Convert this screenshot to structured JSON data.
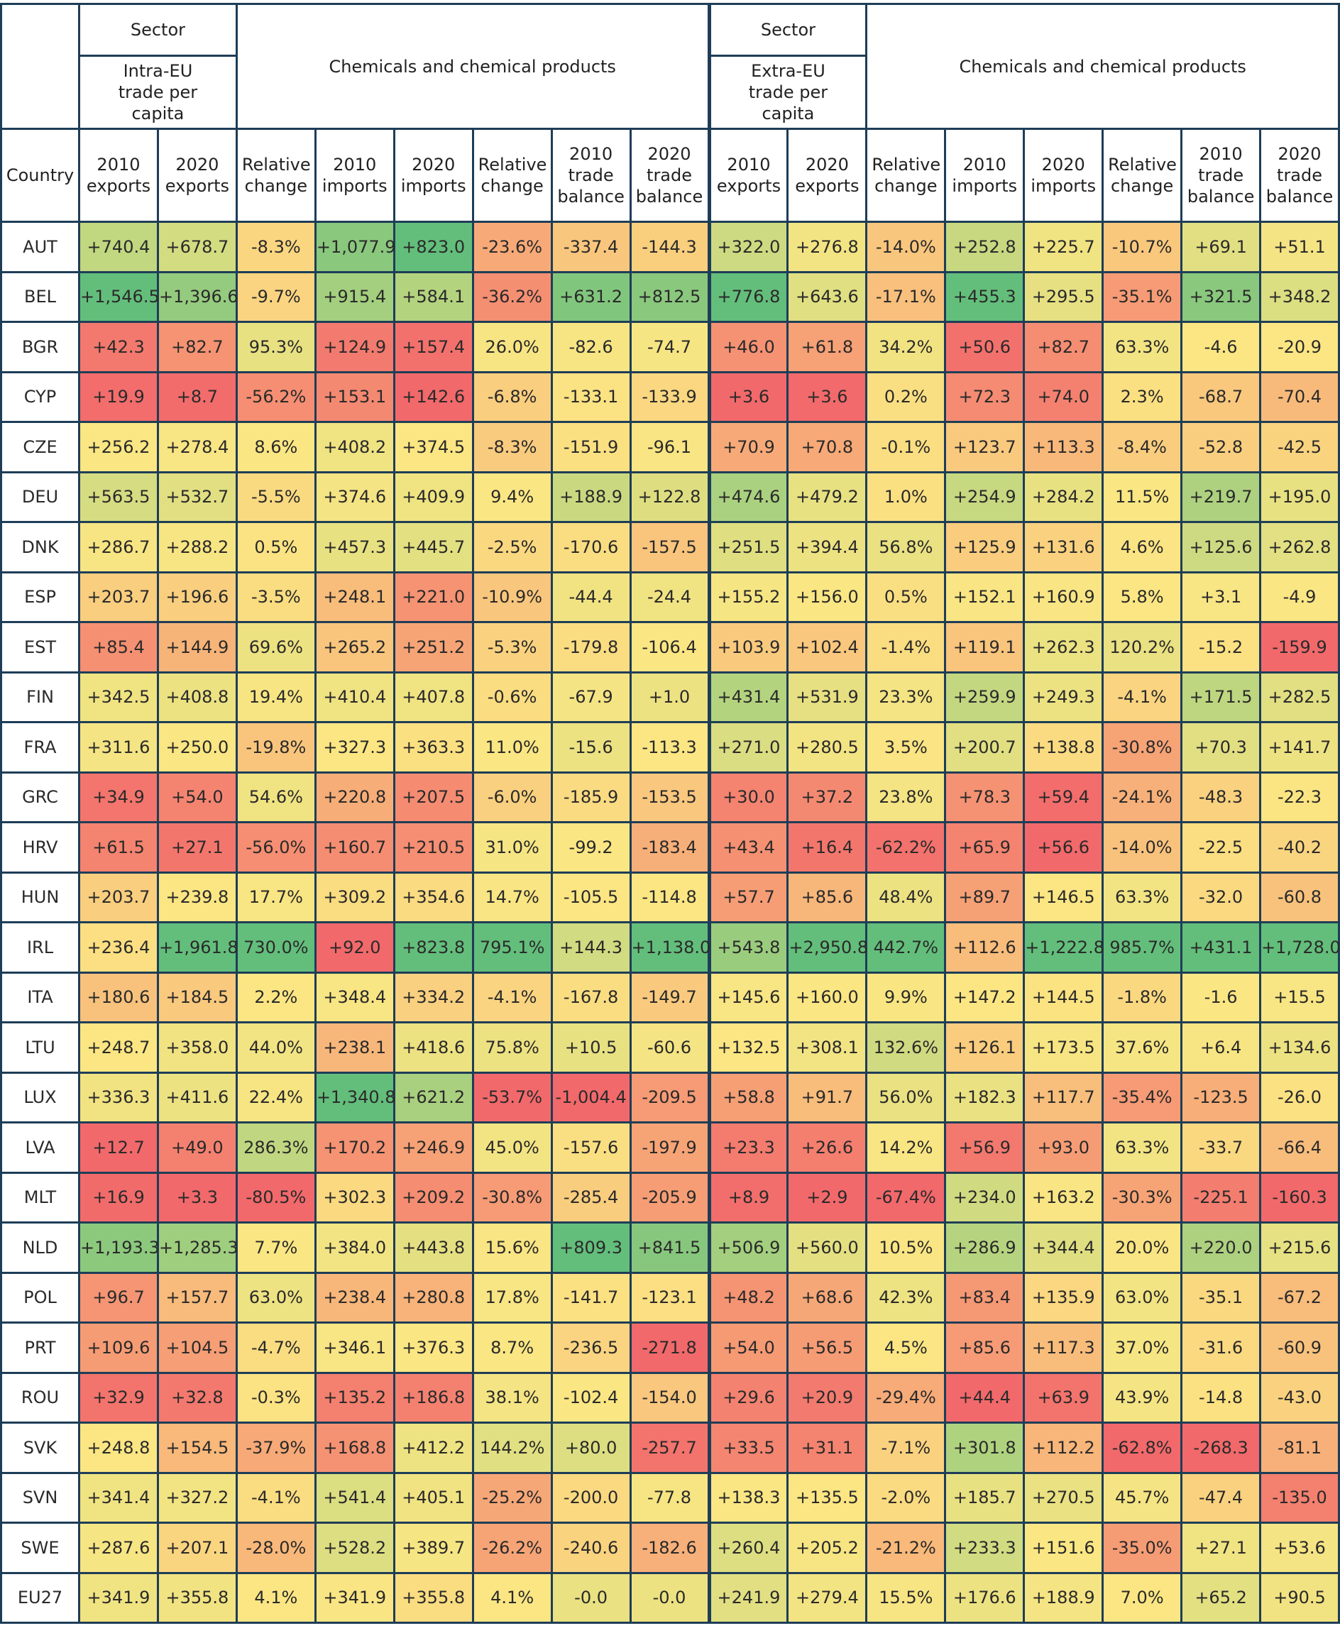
{
  "header": {
    "sector": "Sector",
    "intra_label": "Intra-EU trade per capita",
    "extra_label": "Extra-EU trade per capita",
    "product": "Chemicals and chemical products",
    "country": "Country",
    "columns": [
      "2010 exports",
      "2020 exports",
      "Relative change",
      "2010 imports",
      "2020 imports",
      "Relative change",
      "2010 trade balance",
      "2020 trade balance",
      "2010 exports",
      "2020 exports",
      "Relative change",
      "2010 imports",
      "2020 imports",
      "Relative change",
      "2010 trade balance",
      "2020 trade balance"
    ]
  },
  "colors": {
    "low": "#f2696b",
    "mid": "#fbe683",
    "high": "#63be7b",
    "border": "#1e3d57"
  },
  "rows": [
    {
      "country": "AUT",
      "values": [
        "+740.4",
        "+678.7",
        "-8.3%",
        "+1,077.9",
        "+823.0",
        "-23.6%",
        "-337.4",
        "-144.3",
        "+322.0",
        "+276.8",
        "-14.0%",
        "+252.8",
        "+225.7",
        "-10.7%",
        "+69.1",
        "+51.1"
      ]
    },
    {
      "country": "BEL",
      "values": [
        "+1,546.5",
        "+1,396.6",
        "-9.7%",
        "+915.4",
        "+584.1",
        "-36.2%",
        "+631.2",
        "+812.5",
        "+776.8",
        "+643.6",
        "-17.1%",
        "+455.3",
        "+295.5",
        "-35.1%",
        "+321.5",
        "+348.2"
      ]
    },
    {
      "country": "BGR",
      "values": [
        "+42.3",
        "+82.7",
        "95.3%",
        "+124.9",
        "+157.4",
        "26.0%",
        "-82.6",
        "-74.7",
        "+46.0",
        "+61.8",
        "34.2%",
        "+50.6",
        "+82.7",
        "63.3%",
        "-4.6",
        "-20.9"
      ]
    },
    {
      "country": "CYP",
      "values": [
        "+19.9",
        "+8.7",
        "-56.2%",
        "+153.1",
        "+142.6",
        "-6.8%",
        "-133.1",
        "-133.9",
        "+3.6",
        "+3.6",
        "0.2%",
        "+72.3",
        "+74.0",
        "2.3%",
        "-68.7",
        "-70.4"
      ]
    },
    {
      "country": "CZE",
      "values": [
        "+256.2",
        "+278.4",
        "8.6%",
        "+408.2",
        "+374.5",
        "-8.3%",
        "-151.9",
        "-96.1",
        "+70.9",
        "+70.8",
        "-0.1%",
        "+123.7",
        "+113.3",
        "-8.4%",
        "-52.8",
        "-42.5"
      ]
    },
    {
      "country": "DEU",
      "values": [
        "+563.5",
        "+532.7",
        "-5.5%",
        "+374.6",
        "+409.9",
        "9.4%",
        "+188.9",
        "+122.8",
        "+474.6",
        "+479.2",
        "1.0%",
        "+254.9",
        "+284.2",
        "11.5%",
        "+219.7",
        "+195.0"
      ]
    },
    {
      "country": "DNK",
      "values": [
        "+286.7",
        "+288.2",
        "0.5%",
        "+457.3",
        "+445.7",
        "-2.5%",
        "-170.6",
        "-157.5",
        "+251.5",
        "+394.4",
        "56.8%",
        "+125.9",
        "+131.6",
        "4.6%",
        "+125.6",
        "+262.8"
      ]
    },
    {
      "country": "ESP",
      "values": [
        "+203.7",
        "+196.6",
        "-3.5%",
        "+248.1",
        "+221.0",
        "-10.9%",
        "-44.4",
        "-24.4",
        "+155.2",
        "+156.0",
        "0.5%",
        "+152.1",
        "+160.9",
        "5.8%",
        "+3.1",
        "-4.9"
      ]
    },
    {
      "country": "EST",
      "values": [
        "+85.4",
        "+144.9",
        "69.6%",
        "+265.2",
        "+251.2",
        "-5.3%",
        "-179.8",
        "-106.4",
        "+103.9",
        "+102.4",
        "-1.4%",
        "+119.1",
        "+262.3",
        "120.2%",
        "-15.2",
        "-159.9"
      ]
    },
    {
      "country": "FIN",
      "values": [
        "+342.5",
        "+408.8",
        "19.4%",
        "+410.4",
        "+407.8",
        "-0.6%",
        "-67.9",
        "+1.0",
        "+431.4",
        "+531.9",
        "23.3%",
        "+259.9",
        "+249.3",
        "-4.1%",
        "+171.5",
        "+282.5"
      ]
    },
    {
      "country": "FRA",
      "values": [
        "+311.6",
        "+250.0",
        "-19.8%",
        "+327.3",
        "+363.3",
        "11.0%",
        "-15.6",
        "-113.3",
        "+271.0",
        "+280.5",
        "3.5%",
        "+200.7",
        "+138.8",
        "-30.8%",
        "+70.3",
        "+141.7"
      ]
    },
    {
      "country": "GRC",
      "values": [
        "+34.9",
        "+54.0",
        "54.6%",
        "+220.8",
        "+207.5",
        "-6.0%",
        "-185.9",
        "-153.5",
        "+30.0",
        "+37.2",
        "23.8%",
        "+78.3",
        "+59.4",
        "-24.1%",
        "-48.3",
        "-22.3"
      ]
    },
    {
      "country": "HRV",
      "values": [
        "+61.5",
        "+27.1",
        "-56.0%",
        "+160.7",
        "+210.5",
        "31.0%",
        "-99.2",
        "-183.4",
        "+43.4",
        "+16.4",
        "-62.2%",
        "+65.9",
        "+56.6",
        "-14.0%",
        "-22.5",
        "-40.2"
      ]
    },
    {
      "country": "HUN",
      "values": [
        "+203.7",
        "+239.8",
        "17.7%",
        "+309.2",
        "+354.6",
        "14.7%",
        "-105.5",
        "-114.8",
        "+57.7",
        "+85.6",
        "48.4%",
        "+89.7",
        "+146.5",
        "63.3%",
        "-32.0",
        "-60.8"
      ]
    },
    {
      "country": "IRL",
      "values": [
        "+236.4",
        "+1,961.8",
        "730.0%",
        "+92.0",
        "+823.8",
        "795.1%",
        "+144.3",
        "+1,138.0",
        "+543.8",
        "+2,950.8",
        "442.7%",
        "+112.6",
        "+1,222.8",
        "985.7%",
        "+431.1",
        "+1,728.0"
      ]
    },
    {
      "country": "ITA",
      "values": [
        "+180.6",
        "+184.5",
        "2.2%",
        "+348.4",
        "+334.2",
        "-4.1%",
        "-167.8",
        "-149.7",
        "+145.6",
        "+160.0",
        "9.9%",
        "+147.2",
        "+144.5",
        "-1.8%",
        "-1.6",
        "+15.5"
      ]
    },
    {
      "country": "LTU",
      "values": [
        "+248.7",
        "+358.0",
        "44.0%",
        "+238.1",
        "+418.6",
        "75.8%",
        "+10.5",
        "-60.6",
        "+132.5",
        "+308.1",
        "132.6%",
        "+126.1",
        "+173.5",
        "37.6%",
        "+6.4",
        "+134.6"
      ]
    },
    {
      "country": "LUX",
      "values": [
        "+336.3",
        "+411.6",
        "22.4%",
        "+1,340.8",
        "+621.2",
        "-53.7%",
        "-1,004.4",
        "-209.5",
        "+58.8",
        "+91.7",
        "56.0%",
        "+182.3",
        "+117.7",
        "-35.4%",
        "-123.5",
        "-26.0"
      ]
    },
    {
      "country": "LVA",
      "values": [
        "+12.7",
        "+49.0",
        "286.3%",
        "+170.2",
        "+246.9",
        "45.0%",
        "-157.6",
        "-197.9",
        "+23.3",
        "+26.6",
        "14.2%",
        "+56.9",
        "+93.0",
        "63.3%",
        "-33.7",
        "-66.4"
      ]
    },
    {
      "country": "MLT",
      "values": [
        "+16.9",
        "+3.3",
        "-80.5%",
        "+302.3",
        "+209.2",
        "-30.8%",
        "-285.4",
        "-205.9",
        "+8.9",
        "+2.9",
        "-67.4%",
        "+234.0",
        "+163.2",
        "-30.3%",
        "-225.1",
        "-160.3"
      ]
    },
    {
      "country": "NLD",
      "values": [
        "+1,193.3",
        "+1,285.3",
        "7.7%",
        "+384.0",
        "+443.8",
        "15.6%",
        "+809.3",
        "+841.5",
        "+506.9",
        "+560.0",
        "10.5%",
        "+286.9",
        "+344.4",
        "20.0%",
        "+220.0",
        "+215.6"
      ]
    },
    {
      "country": "POL",
      "values": [
        "+96.7",
        "+157.7",
        "63.0%",
        "+238.4",
        "+280.8",
        "17.8%",
        "-141.7",
        "-123.1",
        "+48.2",
        "+68.6",
        "42.3%",
        "+83.4",
        "+135.9",
        "63.0%",
        "-35.1",
        "-67.2"
      ]
    },
    {
      "country": "PRT",
      "values": [
        "+109.6",
        "+104.5",
        "-4.7%",
        "+346.1",
        "+376.3",
        "8.7%",
        "-236.5",
        "-271.8",
        "+54.0",
        "+56.5",
        "4.5%",
        "+85.6",
        "+117.3",
        "37.0%",
        "-31.6",
        "-60.9"
      ]
    },
    {
      "country": "ROU",
      "values": [
        "+32.9",
        "+32.8",
        "-0.3%",
        "+135.2",
        "+186.8",
        "38.1%",
        "-102.4",
        "-154.0",
        "+29.6",
        "+20.9",
        "-29.4%",
        "+44.4",
        "+63.9",
        "43.9%",
        "-14.8",
        "-43.0"
      ]
    },
    {
      "country": "SVK",
      "values": [
        "+248.8",
        "+154.5",
        "-37.9%",
        "+168.8",
        "+412.2",
        "144.2%",
        "+80.0",
        "-257.7",
        "+33.5",
        "+31.1",
        "-7.1%",
        "+301.8",
        "+112.2",
        "-62.8%",
        "-268.3",
        "-81.1"
      ]
    },
    {
      "country": "SVN",
      "values": [
        "+341.4",
        "+327.2",
        "-4.1%",
        "+541.4",
        "+405.1",
        "-25.2%",
        "-200.0",
        "-77.8",
        "+138.3",
        "+135.5",
        "-2.0%",
        "+185.7",
        "+270.5",
        "45.7%",
        "-47.4",
        "-135.0"
      ]
    },
    {
      "country": "SWE",
      "values": [
        "+287.6",
        "+207.1",
        "-28.0%",
        "+528.2",
        "+389.7",
        "-26.2%",
        "-240.6",
        "-182.6",
        "+260.4",
        "+205.2",
        "-21.2%",
        "+233.3",
        "+151.6",
        "-35.0%",
        "+27.1",
        "+53.6"
      ]
    },
    {
      "country": "EU27",
      "values": [
        "+341.9",
        "+355.8",
        "4.1%",
        "+341.9",
        "+355.8",
        "4.1%",
        "-0.0",
        "-0.0",
        "+241.9",
        "+279.4",
        "15.5%",
        "+176.6",
        "+188.9",
        "7.0%",
        "+65.2",
        "+90.5"
      ]
    }
  ]
}
